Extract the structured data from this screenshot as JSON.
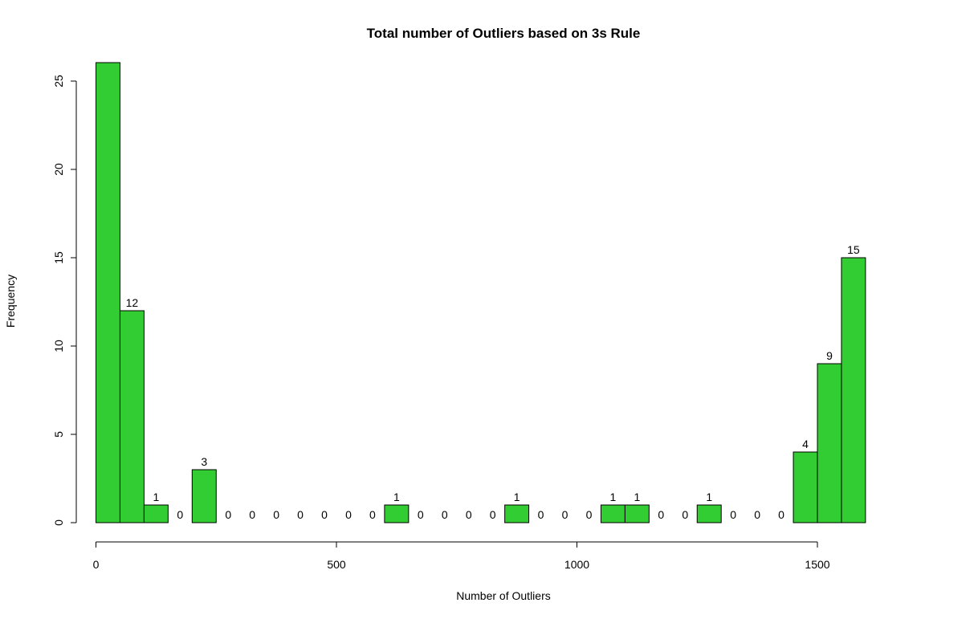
{
  "chart_data": {
    "type": "bar",
    "title": "Total number of Outliers based on 3s Rule",
    "xlabel": "Number of Outliers",
    "ylabel": "Frequency",
    "bar_color": "#32cd32",
    "bar_edge_color": "#000000",
    "bin_width": 50,
    "bin_start": 0,
    "values": [
      28,
      12,
      1,
      0,
      3,
      0,
      0,
      0,
      0,
      0,
      0,
      0,
      1,
      0,
      0,
      0,
      0,
      1,
      0,
      0,
      0,
      1,
      1,
      0,
      0,
      1,
      0,
      0,
      0,
      4,
      9,
      15
    ],
    "label_first_bar": false,
    "xlim": [
      0,
      1600
    ],
    "ylim": [
      0,
      26
    ],
    "xticks": [
      0,
      500,
      1000,
      1500
    ],
    "yticks": [
      0,
      5,
      10,
      15,
      20,
      25
    ],
    "grid": false,
    "legend": "none"
  }
}
